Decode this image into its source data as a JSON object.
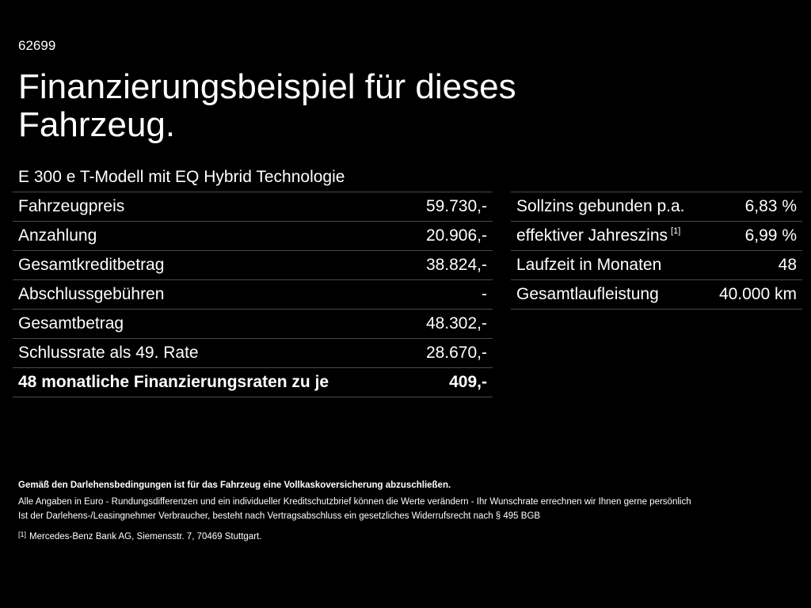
{
  "code": "62699",
  "title": "Finanzierungsbeispiel für dieses Fahrzeug.",
  "model": "E 300 e T-Modell mit EQ Hybrid Technologie",
  "left_table": [
    {
      "label": "Fahrzeugpreis",
      "value": "59.730,-"
    },
    {
      "label": "Anzahlung",
      "value": "20.906,-"
    },
    {
      "label": "Gesamtkreditbetrag",
      "value": "38.824,-"
    },
    {
      "label": "Abschlussgebühren",
      "value": "-"
    },
    {
      "label": "Gesamtbetrag",
      "value": "48.302,-"
    },
    {
      "label": "Schlussrate als 49. Rate",
      "value": "28.670,-"
    },
    {
      "label": "48 monatliche Finanzierungsraten zu je",
      "value": "409,-"
    }
  ],
  "right_table": [
    {
      "label": "Sollzins gebunden p.a.",
      "value": "6,83 %"
    },
    {
      "label": "effektiver Jahreszins",
      "footnote": "[1]",
      "value": "6,99 %"
    },
    {
      "label": "Laufzeit in Monaten",
      "value": "48"
    },
    {
      "label": "Gesamtlaufleistung",
      "value": "40.000 km"
    }
  ],
  "footer": {
    "insurance_note": "Gemäß den Darlehensbedingungen ist für das Fahrzeug eine Vollkaskoversicherung abzuschließen.",
    "disclaimer_1": "Alle Angaben in Euro - Rundungsdifferenzen und ein individueller Kreditschutzbrief können die Werte verändern - Ihr Wunschrate errechnen wir Ihnen gerne persönlich",
    "disclaimer_2": "Ist der Darlehens-/Leasingnehmer Verbraucher, besteht nach Vertragsabschluss ein gesetzliches Widerrufsrecht nach § 495 BGB",
    "footnote_marker": "[1]",
    "footnote_text": "Mercedes-Benz Bank AG, Siemensstr. 7, 70469 Stuttgart."
  }
}
